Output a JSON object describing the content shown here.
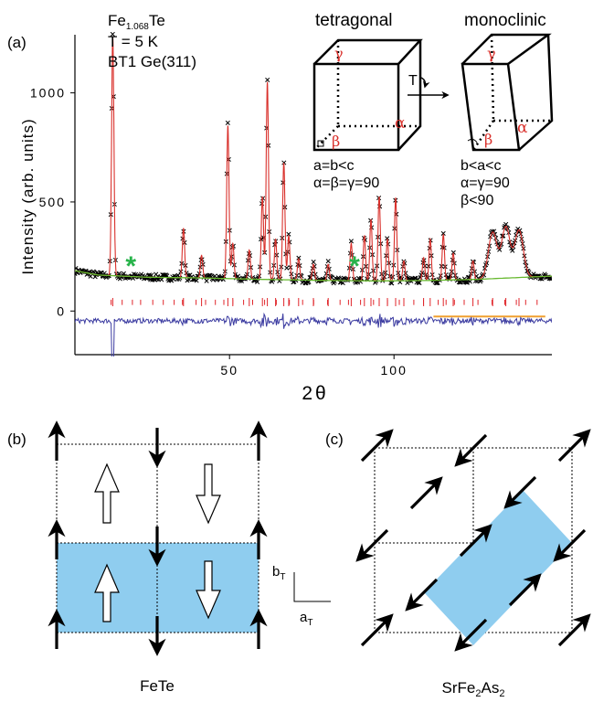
{
  "panel_a": {
    "label": "(a)",
    "sample_name_base": "Fe",
    "sample_name_sub": "1.068",
    "sample_name_tail": "Te",
    "temperature": "T = 5 K",
    "instrument": "BT1 Ge(311)",
    "tetragonal": {
      "title": "tetragonal",
      "angle_gamma": "γ",
      "angle_alpha": "α",
      "angle_beta": "β",
      "line1": "a=b<c",
      "line2": "α=β=γ=90"
    },
    "monoclinic": {
      "title": "monoclinic",
      "angle_gamma": "γ",
      "angle_alpha": "α",
      "angle_beta": "β",
      "line1": "b<a<c",
      "line2": "α=γ=90",
      "line3": "β<90"
    },
    "transition_label": "T"
  },
  "panel_b": {
    "label": "(b)",
    "caption": "FeTe",
    "axis_a_base": "a",
    "axis_a_sub": "T",
    "axis_b_base": "b",
    "axis_b_sub": "T"
  },
  "panel_c": {
    "label": "(c)",
    "caption_base": "SrFe",
    "caption_sub1": "2",
    "caption_mid": "As",
    "caption_sub2": "2"
  },
  "colors": {
    "observed": "#000000",
    "calculated": "#d9302b",
    "background_fit": "#66b82e",
    "difference": "#3a3aa0",
    "reflection_ticks": "#e0262b",
    "impurity_marker": "#27b34a",
    "cell_fill": "#8fcdef"
  },
  "chart_data": {
    "type": "scatter",
    "xlabel": "2θ",
    "ylabel": "Intensity (arb. units)",
    "xlim": [
      3,
      148
    ],
    "ylim": [
      -200,
      1300
    ],
    "x_ticks": [
      50,
      100
    ],
    "y_ticks": [
      0,
      500,
      1000
    ],
    "background": [
      [
        3,
        185
      ],
      [
        10,
        165
      ],
      [
        25,
        155
      ],
      [
        40,
        152
      ],
      [
        60,
        145
      ],
      [
        80,
        140
      ],
      [
        95,
        138
      ],
      [
        110,
        140
      ],
      [
        125,
        145
      ],
      [
        140,
        155
      ],
      [
        148,
        160
      ]
    ],
    "peaks": [
      {
        "x": 14.5,
        "y": 1260
      },
      {
        "x": 36.0,
        "y": 380
      },
      {
        "x": 41.5,
        "y": 255
      },
      {
        "x": 49.5,
        "y": 850
      },
      {
        "x": 51.0,
        "y": 310
      },
      {
        "x": 56.0,
        "y": 280
      },
      {
        "x": 60.0,
        "y": 525
      },
      {
        "x": 61.5,
        "y": 1050
      },
      {
        "x": 64.0,
        "y": 330
      },
      {
        "x": 66.5,
        "y": 680
      },
      {
        "x": 68.0,
        "y": 345
      },
      {
        "x": 71.0,
        "y": 240
      },
      {
        "x": 75.5,
        "y": 215
      },
      {
        "x": 80.0,
        "y": 215
      },
      {
        "x": 87.0,
        "y": 310
      },
      {
        "x": 91.0,
        "y": 345
      },
      {
        "x": 93.0,
        "y": 420
      },
      {
        "x": 95.5,
        "y": 525
      },
      {
        "x": 98.0,
        "y": 330
      },
      {
        "x": 100.5,
        "y": 520
      },
      {
        "x": 103.0,
        "y": 230
      },
      {
        "x": 109.0,
        "y": 245
      },
      {
        "x": 111.0,
        "y": 330
      },
      {
        "x": 115.0,
        "y": 350
      },
      {
        "x": 118.0,
        "y": 265
      },
      {
        "x": 124.0,
        "y": 230
      },
      {
        "x": 130.0,
        "y": 360
      },
      {
        "x": 134.0,
        "y": 385
      },
      {
        "x": 138.0,
        "y": 370
      }
    ],
    "impurity_markers_x": [
      20,
      88
    ]
  }
}
